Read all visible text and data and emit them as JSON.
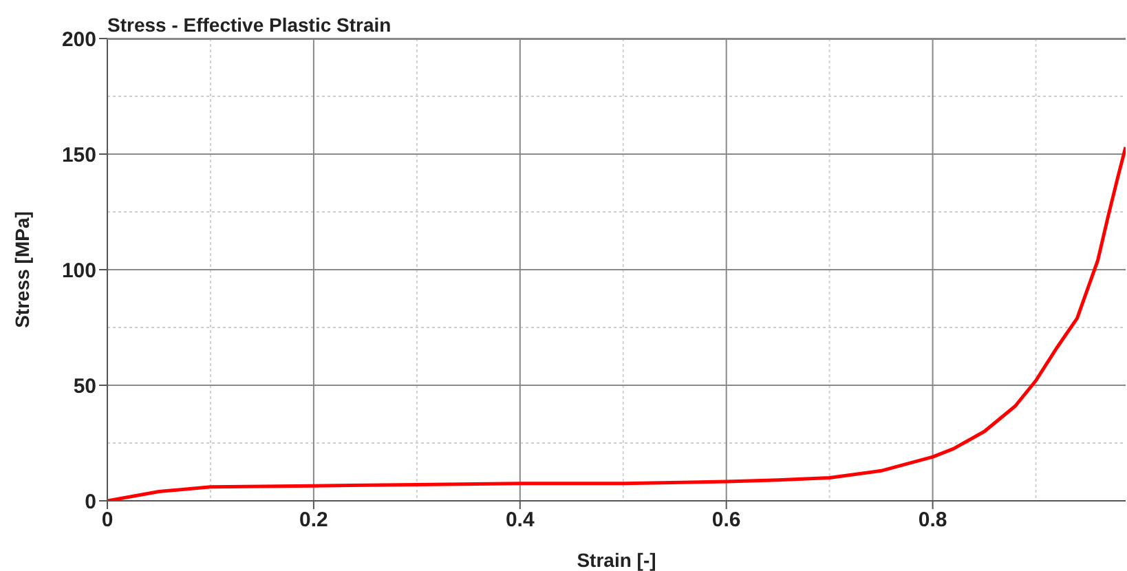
{
  "chart_data": {
    "type": "line",
    "title": "Stress - Effective Plastic Strain",
    "xlabel": "Strain [-]",
    "ylabel": "Stress [MPa]",
    "x": [
      0,
      0.05,
      0.1,
      0.2,
      0.3,
      0.4,
      0.5,
      0.6,
      0.65,
      0.7,
      0.75,
      0.8,
      0.82,
      0.85,
      0.88,
      0.9,
      0.92,
      0.94,
      0.96,
      0.97,
      0.98,
      0.987
    ],
    "series": [
      {
        "color": "#ff0000",
        "values": [
          0,
          4,
          6,
          6.5,
          7,
          7.5,
          7.5,
          8.3,
          9,
          10,
          13,
          19,
          22.5,
          30,
          41,
          52,
          66,
          79,
          104,
          123,
          141,
          153
        ]
      }
    ],
    "xlim": [
      0,
      0.987
    ],
    "xticks": [
      0,
      0.2,
      0.4,
      0.6,
      0.8
    ],
    "ylim": [
      0,
      200
    ],
    "yticks": [
      0,
      50,
      100,
      150,
      200
    ],
    "grid": true,
    "marker": "none",
    "line_style": "solid"
  }
}
